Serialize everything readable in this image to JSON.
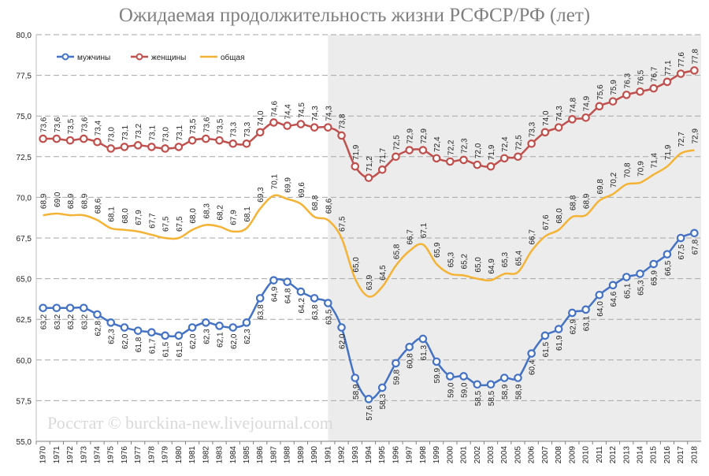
{
  "chart_data": {
    "type": "line",
    "title": "Ожидаемая продолжительность жизни РСФСР/РФ (лет)",
    "watermark": "Росстат © burckina-new.livejournal.com",
    "ylim": [
      55.0,
      80.0
    ],
    "yticks": [
      "55,0",
      "57,5",
      "60,0",
      "62,5",
      "65,0",
      "67,5",
      "70,0",
      "72,5",
      "75,0",
      "77,5",
      "80,0"
    ],
    "grid": "horizontal dashed",
    "legend_position": "top-left",
    "shaded_region": [
      1991,
      2018
    ],
    "categories": [
      "1970",
      "1971",
      "1972",
      "1973",
      "1974",
      "1975",
      "1976",
      "1977",
      "1978",
      "1979",
      "1980",
      "1981",
      "1982",
      "1983",
      "1984",
      "1985",
      "1986",
      "1987",
      "1988",
      "1989",
      "1990",
      "1991",
      "1992",
      "1993",
      "1994",
      "1995",
      "1996",
      "1997",
      "1998",
      "1999",
      "2000",
      "2001",
      "2002",
      "2003",
      "2004",
      "2005",
      "2006",
      "2007",
      "2008",
      "2009",
      "2010",
      "2011",
      "2012",
      "2013",
      "2014",
      "2015",
      "2016",
      "2017",
      "2018"
    ],
    "series": [
      {
        "name": "мужчины",
        "color": "#4472c4",
        "values": [
          63.2,
          63.2,
          63.2,
          63.2,
          62.8,
          62.3,
          62.0,
          61.8,
          61.7,
          61.5,
          61.5,
          62.0,
          62.3,
          62.1,
          62.0,
          62.3,
          63.8,
          64.9,
          64.8,
          64.2,
          63.8,
          63.5,
          62.0,
          58.9,
          57.6,
          58.3,
          59.8,
          60.8,
          61.3,
          59.9,
          59.0,
          59.0,
          58.5,
          58.5,
          58.9,
          58.9,
          60.4,
          61.5,
          61.9,
          62.9,
          63.1,
          64.0,
          64.6,
          65.1,
          65.3,
          65.9,
          66.5,
          67.5,
          67.8
        ],
        "labels": [
          "63,2",
          "63,2",
          "63,2",
          "63,2",
          "62,8",
          "62,3",
          "62,0",
          "61,8",
          "61,7",
          "61,5",
          "61,5",
          "62,0",
          "62,3",
          "62,1",
          "62,0",
          "62,3",
          "63,8",
          "64,9",
          "64,8",
          "64,2",
          "63,8",
          "63,5",
          "62,0",
          "58,9",
          "57,6",
          "58,3",
          "59,8",
          "60,8",
          "61,3",
          "59,9",
          "59,0",
          "59,0",
          "58,5",
          "58,5",
          "58,9",
          "58,9",
          "60,4",
          "61,5",
          "61,9",
          "62,9",
          "63,1",
          "64,0",
          "64,6",
          "65,1",
          "65,3",
          "65,9",
          "66,5",
          "67,5",
          "67,8"
        ]
      },
      {
        "name": "женщины",
        "color": "#c0504d",
        "values": [
          73.6,
          73.6,
          73.5,
          73.6,
          73.4,
          73.0,
          73.1,
          73.2,
          73.1,
          73.0,
          73.1,
          73.5,
          73.6,
          73.5,
          73.3,
          73.3,
          74.0,
          74.6,
          74.4,
          74.5,
          74.3,
          74.3,
          73.8,
          71.9,
          71.2,
          71.7,
          72.5,
          72.9,
          72.9,
          72.4,
          72.2,
          72.3,
          72.0,
          71.9,
          72.4,
          72.5,
          73.3,
          74.0,
          74.3,
          74.8,
          74.9,
          75.6,
          75.9,
          76.3,
          76.5,
          76.7,
          77.1,
          77.6,
          77.8
        ],
        "labels": [
          "73,6",
          "73,6",
          "73,5",
          "73,6",
          "73,4",
          "73,0",
          "73,1",
          "73,2",
          "73,1",
          "73,0",
          "73,1",
          "73,5",
          "73,6",
          "73,5",
          "73,3",
          "73,3",
          "74,0",
          "74,6",
          "74,4",
          "74,5",
          "74,3",
          "74,3",
          "73,8",
          "71,9",
          "71,2",
          "71,7",
          "72,5",
          "72,9",
          "72,9",
          "72,4",
          "72,2",
          "72,3",
          "72,0",
          "71,9",
          "72,4",
          "72,5",
          "73,3",
          "74,0",
          "74,3",
          "74,8",
          "74,9",
          "75,6",
          "75,9",
          "76,3",
          "76,5",
          "76,7",
          "77,1",
          "77,6",
          "77,8"
        ]
      },
      {
        "name": "общая",
        "color": "#f5b335",
        "values": [
          68.9,
          69.0,
          68.9,
          68.9,
          68.6,
          68.1,
          68.0,
          67.9,
          67.7,
          67.5,
          67.5,
          68.0,
          68.3,
          68.2,
          67.9,
          68.1,
          69.3,
          70.1,
          69.9,
          69.6,
          68.8,
          68.6,
          67.5,
          65.0,
          63.9,
          64.5,
          65.8,
          66.7,
          67.1,
          65.9,
          65.3,
          65.2,
          65.0,
          64.9,
          65.3,
          65.4,
          66.7,
          67.6,
          68.0,
          68.8,
          68.9,
          69.8,
          70.2,
          70.8,
          70.9,
          71.4,
          71.9,
          72.7,
          72.9
        ],
        "labels": [
          "68,9",
          "69,0",
          "68,9",
          "68,9",
          "68,6",
          "68,1",
          "68,0",
          "67,9",
          "67,7",
          "67,5",
          "67,5",
          "68,0",
          "68,3",
          "68,2",
          "67,9",
          "68,1",
          "69,3",
          "70,1",
          "69,9",
          "69,6",
          "68,8",
          "68,6",
          "67,5",
          "65,0",
          "63,9",
          "64,5",
          "65,8",
          "66,7",
          "67,1",
          "65,9",
          "65,3",
          "65,2",
          "65,0",
          "64,9",
          "65,3",
          "65,4",
          "66,7",
          "67,6",
          "68,0",
          "68,8",
          "68,9",
          "69,8",
          "70,2",
          "70,8",
          "70,9",
          "71,4",
          "71,9",
          "72,7",
          "72,9"
        ]
      }
    ]
  }
}
